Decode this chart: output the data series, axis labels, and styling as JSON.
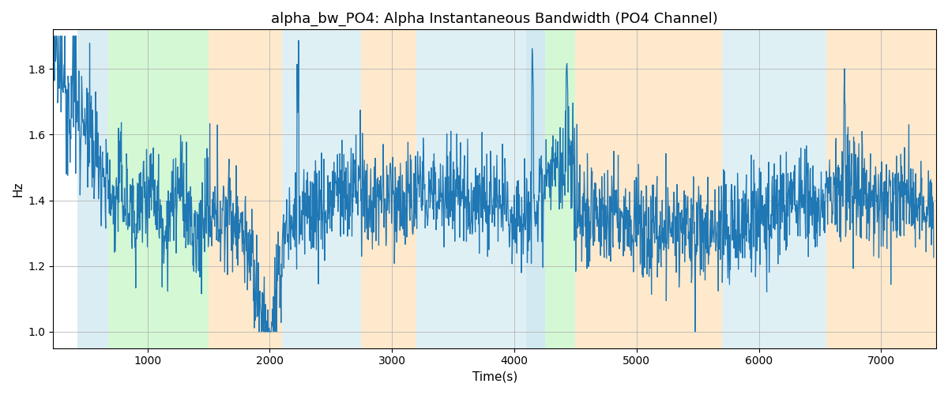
{
  "title": "alpha_bw_PO4: Alpha Instantaneous Bandwidth (PO4 Channel)",
  "xlabel": "Time(s)",
  "ylabel": "Hz",
  "ylim": [
    0.95,
    1.92
  ],
  "xlim": [
    230,
    7450
  ],
  "yticks": [
    1.0,
    1.2,
    1.4,
    1.6,
    1.8
  ],
  "xticks": [
    1000,
    2000,
    3000,
    4000,
    5000,
    6000,
    7000
  ],
  "line_color": "#1f77b4",
  "line_width": 0.9,
  "grid_color": "#aaaaaa",
  "title_fontsize": 13,
  "label_fontsize": 11,
  "bands": [
    {
      "xmin": 430,
      "xmax": 680,
      "color": "#add8e6",
      "alpha": 0.45
    },
    {
      "xmin": 680,
      "xmax": 1500,
      "color": "#90ee90",
      "alpha": 0.38
    },
    {
      "xmin": 1500,
      "xmax": 2100,
      "color": "#ffd59a",
      "alpha": 0.5
    },
    {
      "xmin": 2100,
      "xmax": 2750,
      "color": "#add8e6",
      "alpha": 0.38
    },
    {
      "xmin": 2750,
      "xmax": 3200,
      "color": "#ffd59a",
      "alpha": 0.5
    },
    {
      "xmin": 3200,
      "xmax": 4100,
      "color": "#add8e6",
      "alpha": 0.38
    },
    {
      "xmin": 4100,
      "xmax": 4250,
      "color": "#add8e6",
      "alpha": 0.55
    },
    {
      "xmin": 4250,
      "xmax": 4500,
      "color": "#90ee90",
      "alpha": 0.38
    },
    {
      "xmin": 4500,
      "xmax": 5050,
      "color": "#ffd59a",
      "alpha": 0.5
    },
    {
      "xmin": 5050,
      "xmax": 5700,
      "color": "#ffd59a",
      "alpha": 0.5
    },
    {
      "xmin": 5700,
      "xmax": 6550,
      "color": "#add8e6",
      "alpha": 0.38
    },
    {
      "xmin": 6550,
      "xmax": 7450,
      "color": "#ffd59a",
      "alpha": 0.5
    }
  ],
  "seed": 12345
}
